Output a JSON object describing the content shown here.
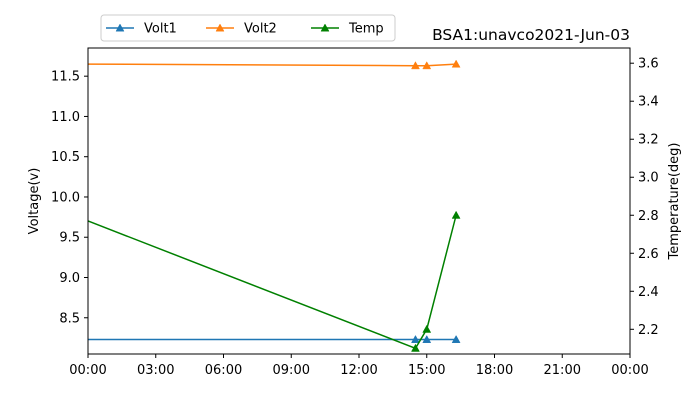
{
  "chart_data": {
    "type": "line",
    "title": "BSA1:unavco2021-Jun-03",
    "xlabel": "",
    "ylabel": "Voltage(v)",
    "y2label": "Temperature(deg)",
    "xlim": [
      0,
      24
    ],
    "ylim": [
      8.05,
      11.85
    ],
    "y2lim": [
      2.07,
      3.68
    ],
    "xticks": [
      0,
      3,
      6,
      9,
      12,
      15,
      18,
      21,
      24
    ],
    "xticklabels": [
      "00:00",
      "03:00",
      "06:00",
      "09:00",
      "12:00",
      "15:00",
      "18:00",
      "21:00",
      "00:00"
    ],
    "yticks": [
      8.5,
      9.0,
      9.5,
      10.0,
      10.5,
      11.0,
      11.5
    ],
    "yticklabels": [
      "8.5",
      "9.0",
      "9.5",
      "10.0",
      "10.5",
      "11.0",
      "11.5"
    ],
    "y2ticks": [
      2.2,
      2.4,
      2.6,
      2.8,
      3.0,
      3.2,
      3.4,
      3.6
    ],
    "y2ticklabels": [
      "2.2",
      "2.4",
      "2.6",
      "2.8",
      "3.0",
      "3.2",
      "3.4",
      "3.6"
    ],
    "grid": false,
    "legend_position": "top-left",
    "series": [
      {
        "name": "Volt1",
        "axis": "left",
        "color": "#1f77b4",
        "marker": "triangle",
        "x": [
          0.0,
          14.5,
          15.0,
          16.3
        ],
        "y": [
          8.23,
          8.23,
          8.23,
          8.23
        ],
        "markers": [
          false,
          true,
          true,
          true
        ]
      },
      {
        "name": "Volt2",
        "axis": "left",
        "color": "#ff7f0e",
        "marker": "triangle",
        "x": [
          0.0,
          14.5,
          15.0,
          16.3
        ],
        "y": [
          11.65,
          11.63,
          11.63,
          11.65
        ],
        "markers": [
          false,
          true,
          true,
          true
        ]
      },
      {
        "name": "Temp",
        "axis": "right",
        "color": "#008000",
        "marker": "triangle",
        "x": [
          0.0,
          14.5,
          15.0,
          16.3
        ],
        "y": [
          2.77,
          2.1,
          2.2,
          2.8
        ],
        "markers": [
          false,
          true,
          true,
          true
        ]
      }
    ]
  }
}
